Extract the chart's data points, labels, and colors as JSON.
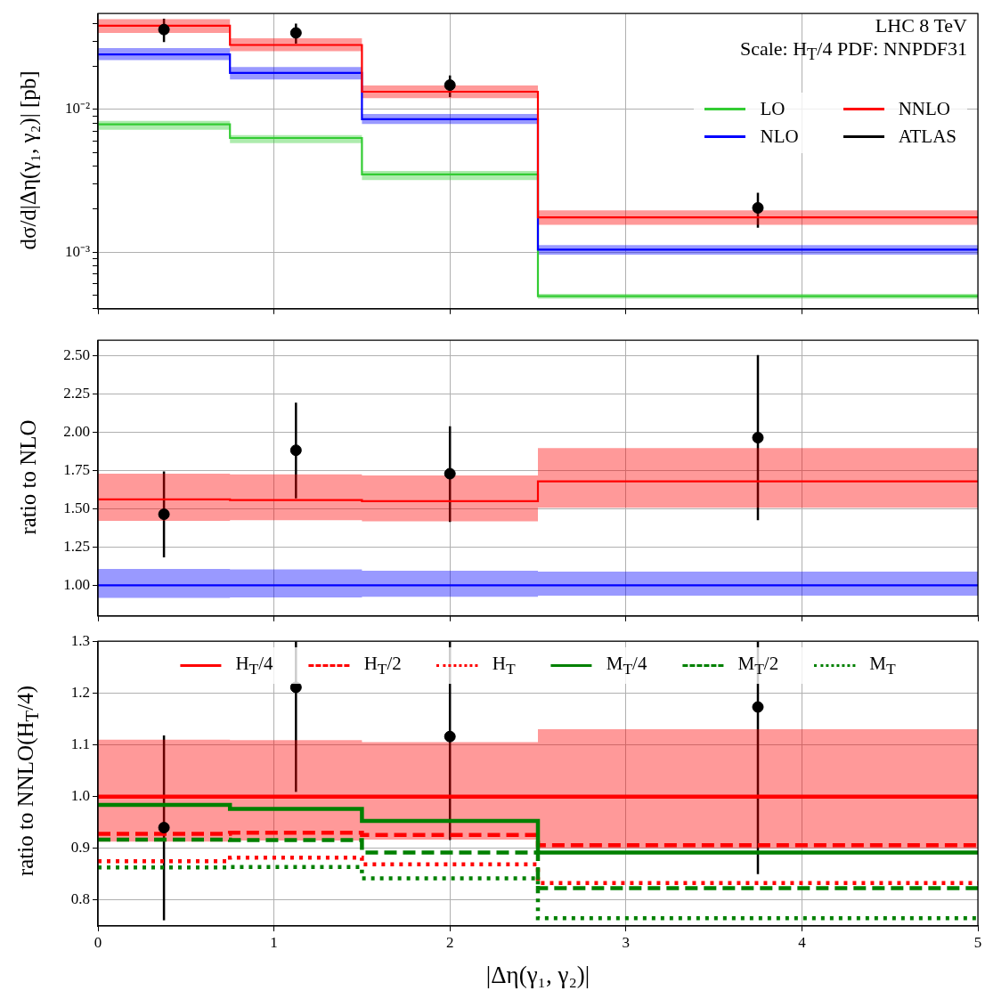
{
  "chart_data": [
    {
      "type": "step",
      "ylabel": "dσ/d|Δη(γ₁, γ₂)| [pb]",
      "annotations": [
        "LHC 8 TeV",
        "Scale: H$_{T}$/4 PDF: NNPDF31"
      ],
      "xlim": [
        0,
        5
      ],
      "xticks": [
        0,
        1,
        2,
        3,
        4,
        5
      ],
      "ylim": [
        0.0004,
        0.047
      ],
      "log": "y",
      "yticks": [
        {
          "value": 0.0004,
          "label": null
        },
        {
          "value": 0.0005,
          "label": null
        },
        {
          "value": 0.0006,
          "label": null
        },
        {
          "value": 0.0007,
          "label": null
        },
        {
          "value": 0.0008,
          "label": null
        },
        {
          "value": 0.0009,
          "label": null
        },
        {
          "value": 0.001,
          "label": "10⁻³"
        },
        {
          "value": 0.002,
          "label": null
        },
        {
          "value": 0.003,
          "label": null
        },
        {
          "value": 0.004,
          "label": null
        },
        {
          "value": 0.005,
          "label": null
        },
        {
          "value": 0.006,
          "label": null
        },
        {
          "value": 0.007,
          "label": null
        },
        {
          "value": 0.008,
          "label": null
        },
        {
          "value": 0.009,
          "label": null
        },
        {
          "value": 0.01,
          "label": "10⁻²"
        },
        {
          "value": 0.02,
          "label": null
        },
        {
          "value": 0.03,
          "label": null
        },
        {
          "value": 0.04,
          "label": null
        }
      ],
      "tick_labels": "y",
      "grid": true,
      "legend": "top right",
      "series": [
        {
          "name": "LO",
          "color": "#33cc33",
          "line_style": "solid",
          "x": [
            0,
            0.75,
            1.5,
            2.5,
            5
          ],
          "values": [
            0.00787,
            0.0063,
            0.0035,
            0.00049,
            0.00049
          ],
          "lower": [
            0.0072,
            0.0058,
            0.0032,
            0.00047,
            0.00047
          ],
          "upper": [
            0.0083,
            0.0066,
            0.0037,
            0.00051,
            0.00051
          ]
        },
        {
          "name": "NLO",
          "color": "#0000ff",
          "line_style": "solid",
          "x": [
            0,
            0.75,
            1.5,
            2.5,
            5
          ],
          "values": [
            0.0243,
            0.018,
            0.00853,
            0.00104,
            0.00104
          ],
          "lower": [
            0.0222,
            0.0162,
            0.0079,
            0.00096,
            0.00096
          ],
          "upper": [
            0.0269,
            0.0198,
            0.0093,
            0.00112,
            0.00112
          ]
        },
        {
          "name": "NNLO",
          "color": "#ff0000",
          "line_style": "solid",
          "x": [
            0,
            0.75,
            1.5,
            2.5,
            5
          ],
          "values": [
            0.0386,
            0.0283,
            0.0133,
            0.00175,
            0.00175
          ],
          "lower": [
            0.0344,
            0.0256,
            0.012,
            0.00155,
            0.00155
          ],
          "upper": [
            0.043,
            0.0315,
            0.0147,
            0.00196,
            0.00196
          ]
        },
        {
          "name": "ATLAS",
          "type": "scatter",
          "marker": "circle",
          "color": "#000000",
          "x": [
            0.375,
            1.125,
            2,
            3.75
          ],
          "values": [
            0.0363,
            0.0344,
            0.0148,
            0.00204
          ],
          "errors": [
            [
              0.0296,
              0.0433
            ],
            [
              0.0289,
              0.04
            ],
            [
              0.0122,
              0.0173
            ],
            [
              0.00148,
              0.0026
            ]
          ]
        }
      ]
    },
    {
      "type": "step",
      "ylabel": "ratio to NLO",
      "xlim": [
        0,
        5
      ],
      "xticks": [
        0,
        1,
        2,
        3,
        4,
        5
      ],
      "ylim": [
        0.8,
        2.6
      ],
      "yticks": [
        {
          "value": 1,
          "label": "1.00"
        },
        {
          "value": 1.25,
          "label": "1.25"
        },
        {
          "value": 1.5,
          "label": "1.50"
        },
        {
          "value": 1.75,
          "label": "1.75"
        },
        {
          "value": 2,
          "label": "2.00"
        },
        {
          "value": 2.25,
          "label": "2.25"
        },
        {
          "value": 2.5,
          "label": "2.50"
        }
      ],
      "tick_labels": "y",
      "grid": true,
      "series": [
        {
          "color": "#0000ff",
          "line_style": "solid",
          "x": [
            0,
            0.75,
            1.5,
            2.5,
            5
          ],
          "values": [
            1,
            1,
            1,
            1,
            1
          ],
          "lower": [
            0.918,
            0.921,
            0.925,
            0.932,
            0.932
          ],
          "upper": [
            1.107,
            1.104,
            1.096,
            1.089,
            1.089
          ]
        },
        {
          "color": "#ff0000",
          "line_style": "solid",
          "x": [
            0,
            0.75,
            1.5,
            2.5,
            5
          ],
          "values": [
            1.561,
            1.557,
            1.55,
            1.679,
            1.679
          ],
          "lower": [
            1.421,
            1.425,
            1.418,
            1.507,
            1.507
          ],
          "upper": [
            1.729,
            1.725,
            1.718,
            1.896,
            1.896
          ]
        },
        {
          "type": "scatter",
          "marker": "circle",
          "color": "#000000",
          "x": [
            0.375,
            1.125,
            2,
            3.75
          ],
          "values": [
            1.464,
            1.882,
            1.729,
            1.964
          ],
          "errors": [
            [
              1.182,
              1.743
            ],
            [
              1.568,
              2.193
            ],
            [
              1.414,
              2.039
            ],
            [
              1.425,
              2.504
            ]
          ]
        }
      ]
    },
    {
      "type": "step",
      "xlabel": "|Δη(γ₁, γ₂)|",
      "ylabel": "ratio to NNLO(H$_{T}$/4)",
      "xlim": [
        0,
        5
      ],
      "xticks": [
        0,
        1,
        2,
        3,
        4,
        5
      ],
      "ylim": [
        0.75,
        1.3
      ],
      "yticks": [
        {
          "value": 0.8,
          "label": "0.8"
        },
        {
          "value": 0.9,
          "label": "0.9"
        },
        {
          "value": 1,
          "label": "1.0"
        },
        {
          "value": 1.1,
          "label": "1.1"
        },
        {
          "value": 1.2,
          "label": "1.2"
        },
        {
          "value": 1.3,
          "label": "1.3"
        }
      ],
      "grid": true,
      "legend": "top",
      "series": [
        {
          "name": "H$_{T}$/4",
          "color": "#ff0000",
          "line_style": "solid",
          "x": [
            0,
            0.75,
            1.5,
            2.5,
            5
          ],
          "values": [
            1,
            1,
            1,
            1,
            1
          ],
          "lower": [
            0.913,
            0.915,
            0.917,
            0.9,
            0.9
          ],
          "upper": [
            1.11,
            1.109,
            1.105,
            1.13,
            1.13
          ]
        },
        {
          "name": "H$_{T}$/2",
          "color": "#ff0000",
          "line_style": "dashed",
          "x": [
            0,
            0.75,
            1.5,
            2.5,
            5
          ],
          "values": [
            0.928,
            0.93,
            0.926,
            0.906,
            0.906
          ]
        },
        {
          "name": "H$_{T}$",
          "color": "#ff0000",
          "line_style": "dotted",
          "x": [
            0,
            0.75,
            1.5,
            2.5,
            5
          ],
          "values": [
            0.875,
            0.882,
            0.869,
            0.833,
            0.833
          ]
        },
        {
          "name": "M$_{T}$/4",
          "color": "#008000",
          "line_style": "solid",
          "x": [
            0,
            0.75,
            1.5,
            2.5,
            5
          ],
          "values": [
            0.984,
            0.976,
            0.953,
            0.892,
            0.892
          ]
        },
        {
          "name": "M$_{T}$/2",
          "color": "#008000",
          "line_style": "dashed",
          "x": [
            0,
            0.75,
            1.5,
            2.5,
            5
          ],
          "values": [
            0.917,
            0.916,
            0.892,
            0.823,
            0.823
          ]
        },
        {
          "name": "M$_{T}$",
          "color": "#008000",
          "line_style": "dotted",
          "x": [
            0,
            0.75,
            1.5,
            2.5,
            5
          ],
          "values": [
            0.863,
            0.864,
            0.842,
            0.765,
            0.765
          ]
        },
        {
          "type": "scatter",
          "marker": "circle",
          "color": "#000000",
          "x": [
            0.375,
            1.125,
            2,
            3.75
          ],
          "values": [
            0.94,
            1.211,
            1.116,
            1.173
          ],
          "errors": [
            [
              0.761,
              1.118
            ],
            [
              1.009,
              1.3
            ],
            [
              0.916,
              1.3
            ],
            [
              0.85,
              1.3
            ]
          ]
        }
      ]
    }
  ]
}
